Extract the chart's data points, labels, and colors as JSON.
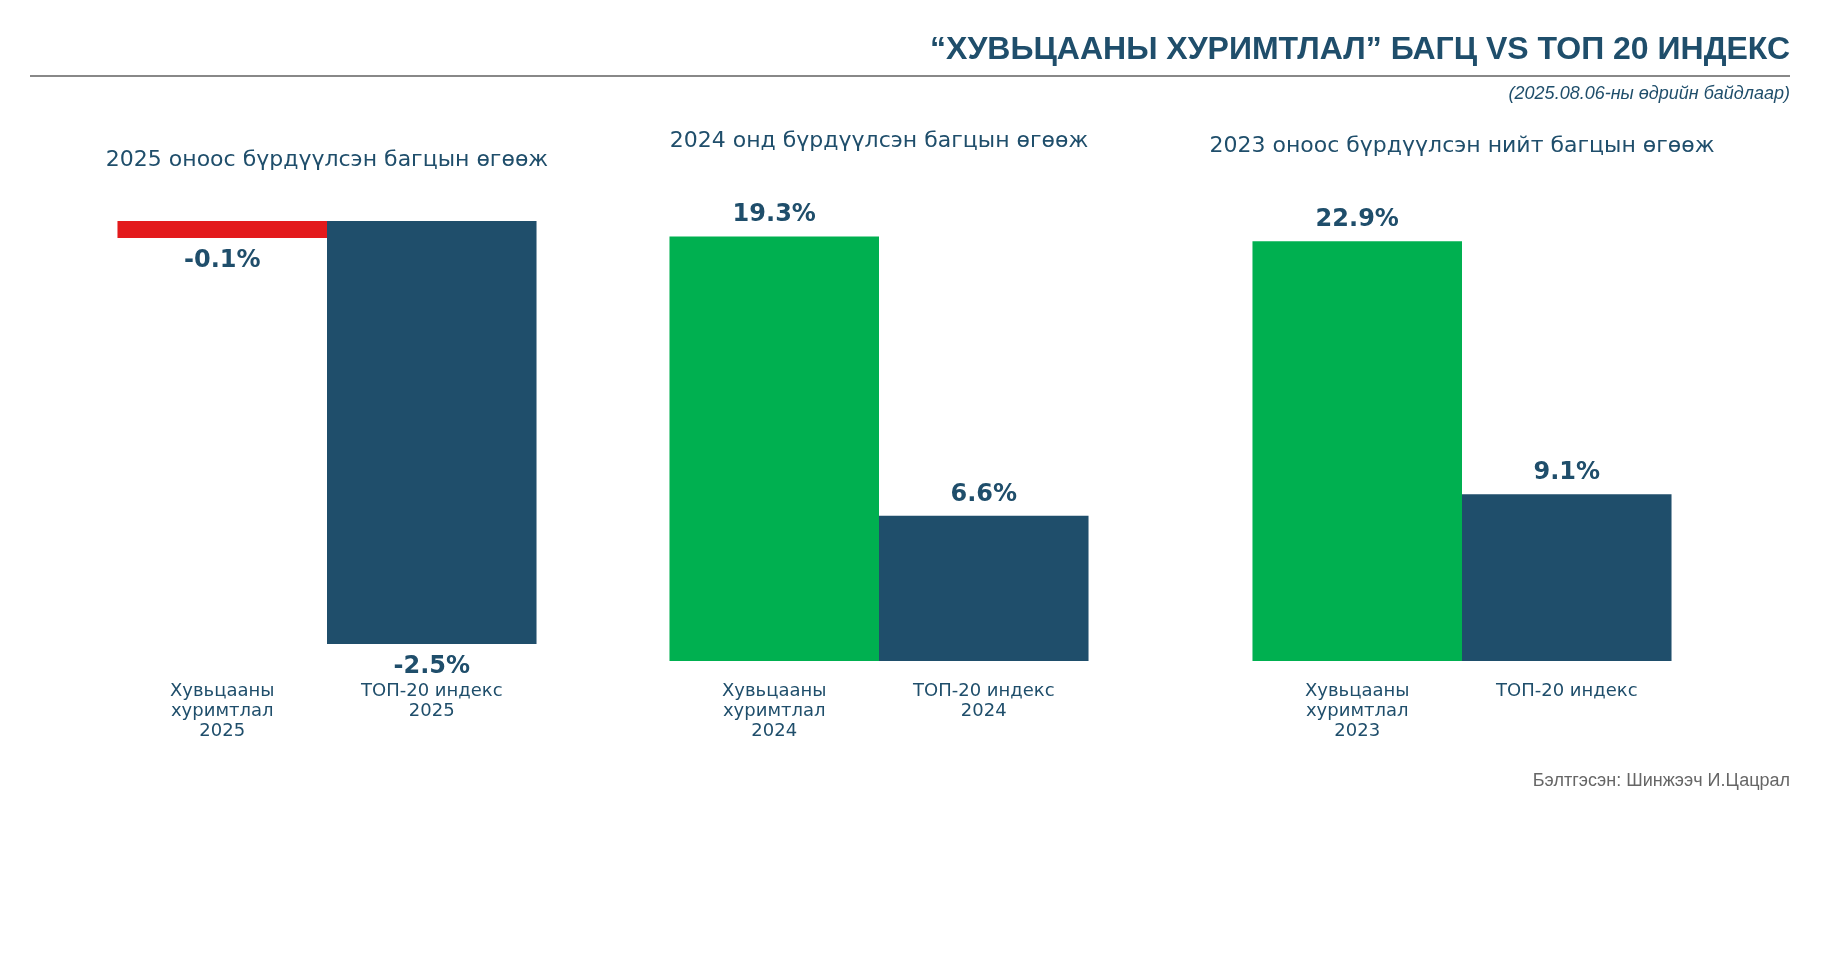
{
  "chart_data": [
    {
      "type": "bar",
      "title": "2025 оноос бүрдүүлсэн багцын өгөөж",
      "annotations": [
        "“ХУВЬЦААНЫ ХУРИМТЛАЛ” БАГЦ VS ТОП 20 ИНДЕКС",
        "(2025.08.06-ны өдрийн байдлаар)"
      ],
      "categories": [
        "Хувьцааны хуримтлал 2025",
        "ТОП-20 индекс 2025"
      ],
      "values": [
        -0.1,
        -2.5
      ],
      "colors": [
        "#e31a1c",
        "#1f4e6b"
      ],
      "value_labels": [
        "-0.1%",
        "-2.5%"
      ]
    },
    {
      "type": "bar",
      "title": "2024 онд бүрдүүлсэн багцын өгөөж",
      "categories": [
        "Хувьцааны хуримтлал 2024",
        "ТОП-20 индекс 2024"
      ],
      "values": [
        19.3,
        6.6
      ],
      "colors": [
        "#00b050",
        "#1f4e6b"
      ],
      "value_labels": [
        "19.3%",
        "6.6%"
      ]
    },
    {
      "type": "bar",
      "title": "2023 оноос бүрдүүлсэн нийт багцын өгөөж",
      "annotations": [
        "Бэлтгэсэн: Шинжээч И.Цацрал"
      ],
      "categories": [
        "Хувьцааны хуримтлал 2023",
        "ТОП-20 индекс"
      ],
      "values": [
        22.9,
        9.1
      ],
      "colors": [
        "#00b050",
        "#1f4e6b"
      ],
      "value_labels": [
        "22.9%",
        "9.1%"
      ]
    }
  ]
}
